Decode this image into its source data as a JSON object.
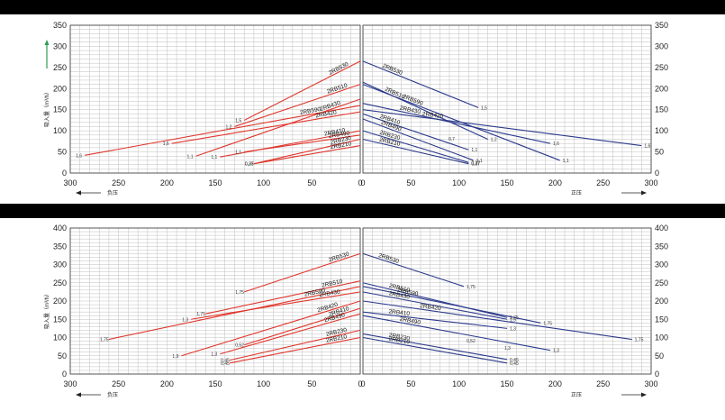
{
  "colors": {
    "left_series": "#e0362c",
    "right_series": "#2b3a8c",
    "grid": "#bfbfbf",
    "band": "#000000",
    "up_arrow": "#2e9b54"
  },
  "chart_data": [
    {
      "type": "line",
      "ylabel": "吸入量（m³/h）",
      "ylim": [
        0,
        350
      ],
      "yticks": [
        0,
        50,
        100,
        150,
        200,
        250,
        300,
        350
      ],
      "left_panel": {
        "xlabel": "负压",
        "xlim": [
          300,
          0
        ],
        "xticks": [
          300,
          250,
          200,
          150,
          100,
          50,
          0
        ],
        "grid": true,
        "series": [
          {
            "name": "2RB530",
            "points": [
              [
                120,
                125
              ],
              [
                0,
                265
              ]
            ],
            "end_label": "1,5"
          },
          {
            "name": "2RB510",
            "points": [
              [
                130,
                110
              ],
              [
                0,
                210
              ]
            ],
            "end_label": "1,2"
          },
          {
            "name": "2RB590",
            "points": [
              [
                285,
                42
              ],
              [
                0,
                160
              ]
            ],
            "end_label": "1,6"
          },
          {
            "name": "2RB430",
            "points": [
              [
                170,
                40
              ],
              [
                0,
                175
              ]
            ],
            "end_label": "1,1"
          },
          {
            "name": "2RB420",
            "points": [
              [
                195,
                70
              ],
              [
                0,
                145
              ]
            ],
            "end_label": "1,6"
          },
          {
            "name": "2RB410",
            "points": [
              [
                145,
                38
              ],
              [
                0,
                100
              ]
            ],
            "end_label": "1,1"
          },
          {
            "name": "2RB490",
            "points": [
              [
                120,
                50
              ],
              [
                0,
                90
              ]
            ],
            "end_label": "1,1"
          },
          {
            "name": "2RB230",
            "points": [
              [
                110,
                22
              ],
              [
                0,
                80
              ]
            ],
            "end_label": "0,37"
          },
          {
            "name": "2RB210",
            "points": [
              [
                110,
                22
              ],
              [
                0,
                65
              ]
            ],
            "end_label": "0,25"
          }
        ]
      },
      "right_panel": {
        "xlabel": "正压",
        "xlim": [
          0,
          300
        ],
        "xticks": [
          0,
          50,
          100,
          150,
          200,
          250,
          300
        ],
        "grid": true,
        "series": [
          {
            "name": "2RB530",
            "points": [
              [
                0,
                265
              ],
              [
                120,
                155
              ]
            ],
            "end_label": "1,5"
          },
          {
            "name": "2RB510",
            "points": [
              [
                0,
                215
              ],
              [
                130,
                80
              ]
            ],
            "end_label": "1,2"
          },
          {
            "name": "2RB590",
            "points": [
              [
                0,
                210
              ],
              [
                205,
                30
              ]
            ],
            "end_label": "1,1"
          },
          {
            "name": "2RB430",
            "points": [
              [
                0,
                165
              ],
              [
                195,
                70
              ]
            ],
            "end_label": "1,6"
          },
          {
            "name": "2RB420",
            "points": [
              [
                0,
                150
              ],
              [
                290,
                65
              ]
            ],
            "end_label": "1,6"
          },
          {
            "name": "2RB410",
            "points": [
              [
                0,
                140
              ],
              [
                110,
                55
              ]
            ],
            "end_label": "1,1"
          },
          {
            "name": "2RB490",
            "points": [
              [
                0,
                128
              ],
              [
                115,
                30
              ]
            ],
            "end_label": "1,1"
          },
          {
            "name": "2RB230",
            "points": [
              [
                0,
                100
              ],
              [
                110,
                25
              ]
            ],
            "end_label": "0,37"
          },
          {
            "name": "2RB210",
            "points": [
              [
                0,
                80
              ],
              [
                110,
                22
              ]
            ],
            "end_label": "0,37"
          }
        ]
      },
      "extra_labels": [
        "0,7"
      ]
    },
    {
      "type": "line",
      "ylabel": "吸入量（m³/h）",
      "ylim": [
        0,
        400
      ],
      "yticks": [
        0,
        50,
        100,
        150,
        200,
        250,
        300,
        350,
        400
      ],
      "left_panel": {
        "xlabel": "负压",
        "xlim": [
          300,
          0
        ],
        "xticks": [
          300,
          250,
          200,
          150,
          100,
          50,
          0
        ],
        "grid": true,
        "series": [
          {
            "name": "2RB530",
            "points": [
              [
                120,
                225
              ],
              [
                0,
                330
              ]
            ],
            "end_label": "1,75"
          },
          {
            "name": "2RB510",
            "points": [
              [
                160,
                165
              ],
              [
                0,
                255
              ]
            ],
            "end_label": "1,75"
          },
          {
            "name": "2RB590",
            "points": [
              [
                260,
                95
              ],
              [
                0,
                240
              ]
            ],
            "end_label": "1,75"
          },
          {
            "name": "2RB430",
            "points": [
              [
                175,
                150
              ],
              [
                0,
                225
              ]
            ],
            "end_label": "1,3"
          },
          {
            "name": "2RB420",
            "points": [
              [
                185,
                50
              ],
              [
                0,
                200
              ]
            ],
            "end_label": "1,9"
          },
          {
            "name": "2RB410",
            "points": [
              [
                120,
                80
              ],
              [
                0,
                180
              ]
            ],
            "end_label": "0,52"
          },
          {
            "name": "2RB490",
            "points": [
              [
                145,
                55
              ],
              [
                0,
                165
              ]
            ],
            "end_label": "1,3"
          },
          {
            "name": "2RB230",
            "points": [
              [
                135,
                38
              ],
              [
                0,
                120
              ]
            ],
            "end_label": "0,45"
          },
          {
            "name": "2RB210",
            "points": [
              [
                135,
                30
              ],
              [
                0,
                100
              ]
            ],
            "end_label": "0,45"
          }
        ]
      },
      "right_panel": {
        "xlabel": "正压",
        "xlim": [
          0,
          300
        ],
        "xticks": [
          0,
          50,
          100,
          150,
          200,
          250,
          300
        ],
        "grid": true,
        "series": [
          {
            "name": "2RB530",
            "points": [
              [
                0,
                330
              ],
              [
                105,
                240
              ]
            ],
            "end_label": "1,75"
          },
          {
            "name": "2RB510",
            "points": [
              [
                0,
                250
              ],
              [
                150,
                155
              ]
            ],
            "end_label": "1,75"
          },
          {
            "name": "2RB590",
            "points": [
              [
                0,
                240
              ],
              [
                185,
                140
              ]
            ],
            "end_label": "1,75"
          },
          {
            "name": "2RB430",
            "points": [
              [
                0,
                225
              ],
              [
                150,
                150
              ]
            ],
            "end_label": "1,9"
          },
          {
            "name": "2RB420",
            "points": [
              [
                0,
                200
              ],
              [
                280,
                95
              ]
            ],
            "end_label": "1,75"
          },
          {
            "name": "2RB410",
            "points": [
              [
                0,
                170
              ],
              [
                150,
                125
              ]
            ],
            "end_label": "1,3"
          },
          {
            "name": "2RB490",
            "points": [
              [
                0,
                160
              ],
              [
                195,
                65
              ]
            ],
            "end_label": "1,3"
          },
          {
            "name": "2RB230",
            "points": [
              [
                0,
                110
              ],
              [
                150,
                40
              ]
            ],
            "end_label": "0,45"
          },
          {
            "name": "2RB210",
            "points": [
              [
                0,
                100
              ],
              [
                150,
                30
              ]
            ],
            "end_label": "0,45"
          }
        ]
      },
      "extra_labels": [
        "0,52",
        "1,3"
      ]
    }
  ]
}
